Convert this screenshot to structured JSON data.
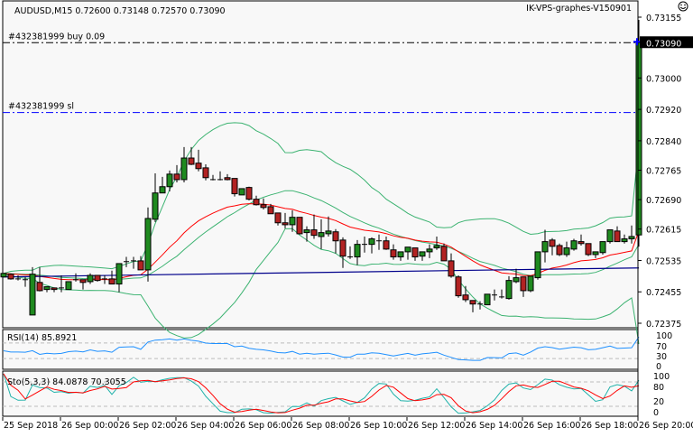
{
  "header": {
    "symbol_info": "AUDUSD,M15  0.72600 0.73148 0.72570 0.73090",
    "expert_name": "IK-VPS-graphes-V150901",
    "expert_icon": "smiley-face-icon"
  },
  "orders": {
    "buy_label": "#432381999 buy 0.09",
    "buy_price": 0.7309,
    "sl_label": "#432381999 sl",
    "sl_price": 0.72912
  },
  "price_axis": {
    "labels": [
      "0.73155",
      "0.73000",
      "0.72920",
      "0.72840",
      "0.72765",
      "0.72690",
      "0.72615",
      "0.72535",
      "0.72455",
      "0.72375"
    ],
    "current_price": "0.73090"
  },
  "rsi": {
    "label": "RSI(14) 85.8921",
    "axis_labels": [
      "100",
      "70",
      "30",
      "0"
    ],
    "levels": [
      70,
      30
    ]
  },
  "stochastic": {
    "label": "Sto(5,3,3) 84.0878 70.3055",
    "axis_labels": [
      "100",
      "80",
      "20",
      "0"
    ],
    "levels": [
      80,
      20
    ]
  },
  "time_axis": {
    "labels": [
      "25 Sep 2018",
      "26 Sep 00:00",
      "26 Sep 02:00",
      "26 Sep 04:00",
      "26 Sep 06:00",
      "26 Sep 08:00",
      "26 Sep 10:00",
      "26 Sep 12:00",
      "26 Sep 14:00",
      "26 Sep 16:00",
      "26 Sep 18:00",
      "26 Sep 20:00"
    ]
  },
  "colors": {
    "bull": "#1f8a1f",
    "bear": "#b22222",
    "bands": "#3cb371",
    "fast_ma": "#ff0000",
    "slow_ma": "#00008b",
    "rsi": "#1e90ff",
    "sto_main": "#20b2aa",
    "sto_signal": "#ff0000",
    "sl_line": "#0000ff"
  },
  "chart_data": {
    "type": "candlestick",
    "timeframe": "M15",
    "ylim": [
      0.72375,
      0.73155
    ],
    "slow_ma": [
      0.72493,
      0.72516
    ],
    "ohlc": [
      [
        0.72493,
        0.72502,
        0.72493,
        0.72502
      ],
      [
        0.725,
        0.72502,
        0.72486,
        0.72488
      ],
      [
        0.72488,
        0.72497,
        0.72484,
        0.72488
      ],
      [
        0.72486,
        0.72493,
        0.72468,
        0.72486
      ],
      [
        0.72396,
        0.72518,
        0.72396,
        0.725
      ],
      [
        0.72479,
        0.72518,
        0.72456,
        0.72458
      ],
      [
        0.72461,
        0.72468,
        0.72454,
        0.72468
      ],
      [
        0.72465,
        0.72465,
        0.72454,
        0.72461
      ],
      [
        0.72465,
        0.72497,
        0.72454,
        0.72465
      ],
      [
        0.72461,
        0.72481,
        0.72461,
        0.72481
      ],
      [
        0.72484,
        0.72502,
        0.72481,
        0.72486
      ],
      [
        0.72486,
        0.72486,
        0.72461,
        0.72479
      ],
      [
        0.72481,
        0.72502,
        0.72475,
        0.72497
      ],
      [
        0.72497,
        0.72497,
        0.72481,
        0.72484
      ],
      [
        0.72488,
        0.72497,
        0.72475,
        0.72488
      ],
      [
        0.72488,
        0.72509,
        0.72475,
        0.72475
      ],
      [
        0.72475,
        0.72527,
        0.72454,
        0.72527
      ],
      [
        0.7253,
        0.72544,
        0.72518,
        0.72532
      ],
      [
        0.72532,
        0.72544,
        0.72514,
        0.72534
      ],
      [
        0.72534,
        0.72546,
        0.72511,
        0.72511
      ],
      [
        0.72511,
        0.7267,
        0.72481,
        0.72642
      ],
      [
        0.7264,
        0.72757,
        0.72633,
        0.72707
      ],
      [
        0.72707,
        0.72748,
        0.72707,
        0.72723
      ],
      [
        0.72723,
        0.72764,
        0.72711,
        0.72755
      ],
      [
        0.72755,
        0.72778,
        0.72734,
        0.72741
      ],
      [
        0.72741,
        0.72824,
        0.72734,
        0.72796
      ],
      [
        0.72796,
        0.72824,
        0.72778,
        0.7278
      ],
      [
        0.72783,
        0.72817,
        0.72762,
        0.72769
      ],
      [
        0.72771,
        0.7278,
        0.72739,
        0.72746
      ],
      [
        0.72741,
        0.72753,
        0.72739,
        0.72741
      ],
      [
        0.72741,
        0.72762,
        0.72739,
        0.72741
      ],
      [
        0.72746,
        0.72755,
        0.72739,
        0.72741
      ],
      [
        0.72744,
        0.72744,
        0.72698,
        0.72705
      ],
      [
        0.72702,
        0.72718,
        0.72702,
        0.72718
      ],
      [
        0.72721,
        0.72723,
        0.72688,
        0.72691
      ],
      [
        0.72691,
        0.727,
        0.72675,
        0.72677
      ],
      [
        0.72677,
        0.72693,
        0.72665,
        0.7267
      ],
      [
        0.72672,
        0.72679,
        0.72654,
        0.72654
      ],
      [
        0.72656,
        0.72656,
        0.72624,
        0.72631
      ],
      [
        0.72631,
        0.72656,
        0.72617,
        0.72626
      ],
      [
        0.72626,
        0.72663,
        0.72608,
        0.72645
      ],
      [
        0.72645,
        0.72645,
        0.72601,
        0.72603
      ],
      [
        0.72606,
        0.72622,
        0.72583,
        0.72613
      ],
      [
        0.72613,
        0.72652,
        0.7259,
        0.72599
      ],
      [
        0.72596,
        0.7264,
        0.72564,
        0.72606
      ],
      [
        0.72603,
        0.72647,
        0.72596,
        0.7261
      ],
      [
        0.72608,
        0.72615,
        0.72553,
        0.72585
      ],
      [
        0.72587,
        0.72594,
        0.72516,
        0.72546
      ],
      [
        0.72544,
        0.72571,
        0.72539,
        0.72544
      ],
      [
        0.72544,
        0.72587,
        0.72523,
        0.72576
      ],
      [
        0.72576,
        0.72596,
        0.72555,
        0.72576
      ],
      [
        0.72576,
        0.72594,
        0.72553,
        0.7259
      ],
      [
        0.72585,
        0.72601,
        0.72562,
        0.72585
      ],
      [
        0.72585,
        0.72596,
        0.72562,
        0.72564
      ],
      [
        0.72562,
        0.72576,
        0.72537,
        0.72544
      ],
      [
        0.72544,
        0.72557,
        0.72534,
        0.72557
      ],
      [
        0.72557,
        0.72569,
        0.72537,
        0.72569
      ],
      [
        0.72567,
        0.72567,
        0.72534,
        0.72544
      ],
      [
        0.72546,
        0.72557,
        0.72534,
        0.72557
      ],
      [
        0.72557,
        0.72576,
        0.72541,
        0.72564
      ],
      [
        0.72567,
        0.72596,
        0.72562,
        0.72573
      ],
      [
        0.72571,
        0.72578,
        0.72534,
        0.72534
      ],
      [
        0.72534,
        0.72553,
        0.72491,
        0.72495
      ],
      [
        0.72493,
        0.72497,
        0.7244,
        0.72445
      ],
      [
        0.72447,
        0.7247,
        0.72429,
        0.72435
      ],
      [
        0.72433,
        0.72433,
        0.72403,
        0.72424
      ],
      [
        0.72424,
        0.72431,
        0.7241,
        0.72424
      ],
      [
        0.72422,
        0.72449,
        0.72422,
        0.72449
      ],
      [
        0.72447,
        0.72461,
        0.72433,
        0.72447
      ],
      [
        0.72442,
        0.72461,
        0.72438,
        0.72442
      ],
      [
        0.72438,
        0.72495,
        0.72435,
        0.72484
      ],
      [
        0.72481,
        0.72514,
        0.72477,
        0.72491
      ],
      [
        0.72493,
        0.72493,
        0.72442,
        0.72458
      ],
      [
        0.72458,
        0.72495,
        0.72454,
        0.72495
      ],
      [
        0.72491,
        0.72557,
        0.72486,
        0.72557
      ],
      [
        0.72557,
        0.72613,
        0.7253,
        0.72583
      ],
      [
        0.72587,
        0.72592,
        0.72548,
        0.72571
      ],
      [
        0.72573,
        0.72578,
        0.72546,
        0.7255
      ],
      [
        0.7255,
        0.72583,
        0.72544,
        0.72567
      ],
      [
        0.72564,
        0.7259,
        0.7256,
        0.72585
      ],
      [
        0.72583,
        0.72601,
        0.72573,
        0.72578
      ],
      [
        0.72578,
        0.72578,
        0.72546,
        0.7255
      ],
      [
        0.7255,
        0.72557,
        0.72541,
        0.72557
      ],
      [
        0.72555,
        0.72583,
        0.7255,
        0.72583
      ],
      [
        0.72583,
        0.72613,
        0.72578,
        0.72613
      ],
      [
        0.7261,
        0.72622,
        0.72583,
        0.72583
      ],
      [
        0.72583,
        0.72601,
        0.72578,
        0.7259
      ],
      [
        0.7259,
        0.72624,
        0.72578,
        0.72596
      ],
      [
        0.726,
        0.73148,
        0.7257,
        0.7309
      ]
    ]
  }
}
